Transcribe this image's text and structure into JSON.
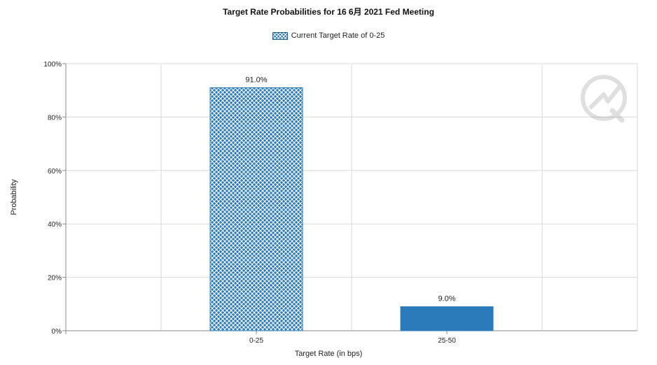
{
  "chart_data": {
    "type": "bar",
    "title": "Target Rate Probabilities for 16 6月 2021 Fed Meeting",
    "legend": [
      "Current Target Rate of 0-25"
    ],
    "legend_position": "top-center",
    "xlabel": "Target Rate (in bps)",
    "ylabel": "Probability",
    "categories": [
      "0-25",
      "25-50"
    ],
    "series": [
      {
        "name": "Current Target Rate of 0-25",
        "values": [
          91.0,
          9.0
        ],
        "data_labels": [
          "91.0%",
          "9.0%"
        ],
        "styles": [
          "crosshatch",
          "solid"
        ]
      }
    ],
    "ylim": [
      0,
      100
    ],
    "yticks": [
      "0%",
      "20%",
      "40%",
      "60%",
      "80%",
      "100%"
    ],
    "grid": true,
    "colors": {
      "bar": "#2b7bba",
      "hatch_bg": "#ffffff",
      "grid": "#d9d9d9",
      "axis": "#888888"
    }
  },
  "watermark": {
    "icon": "quikstrike-logo-icon"
  }
}
